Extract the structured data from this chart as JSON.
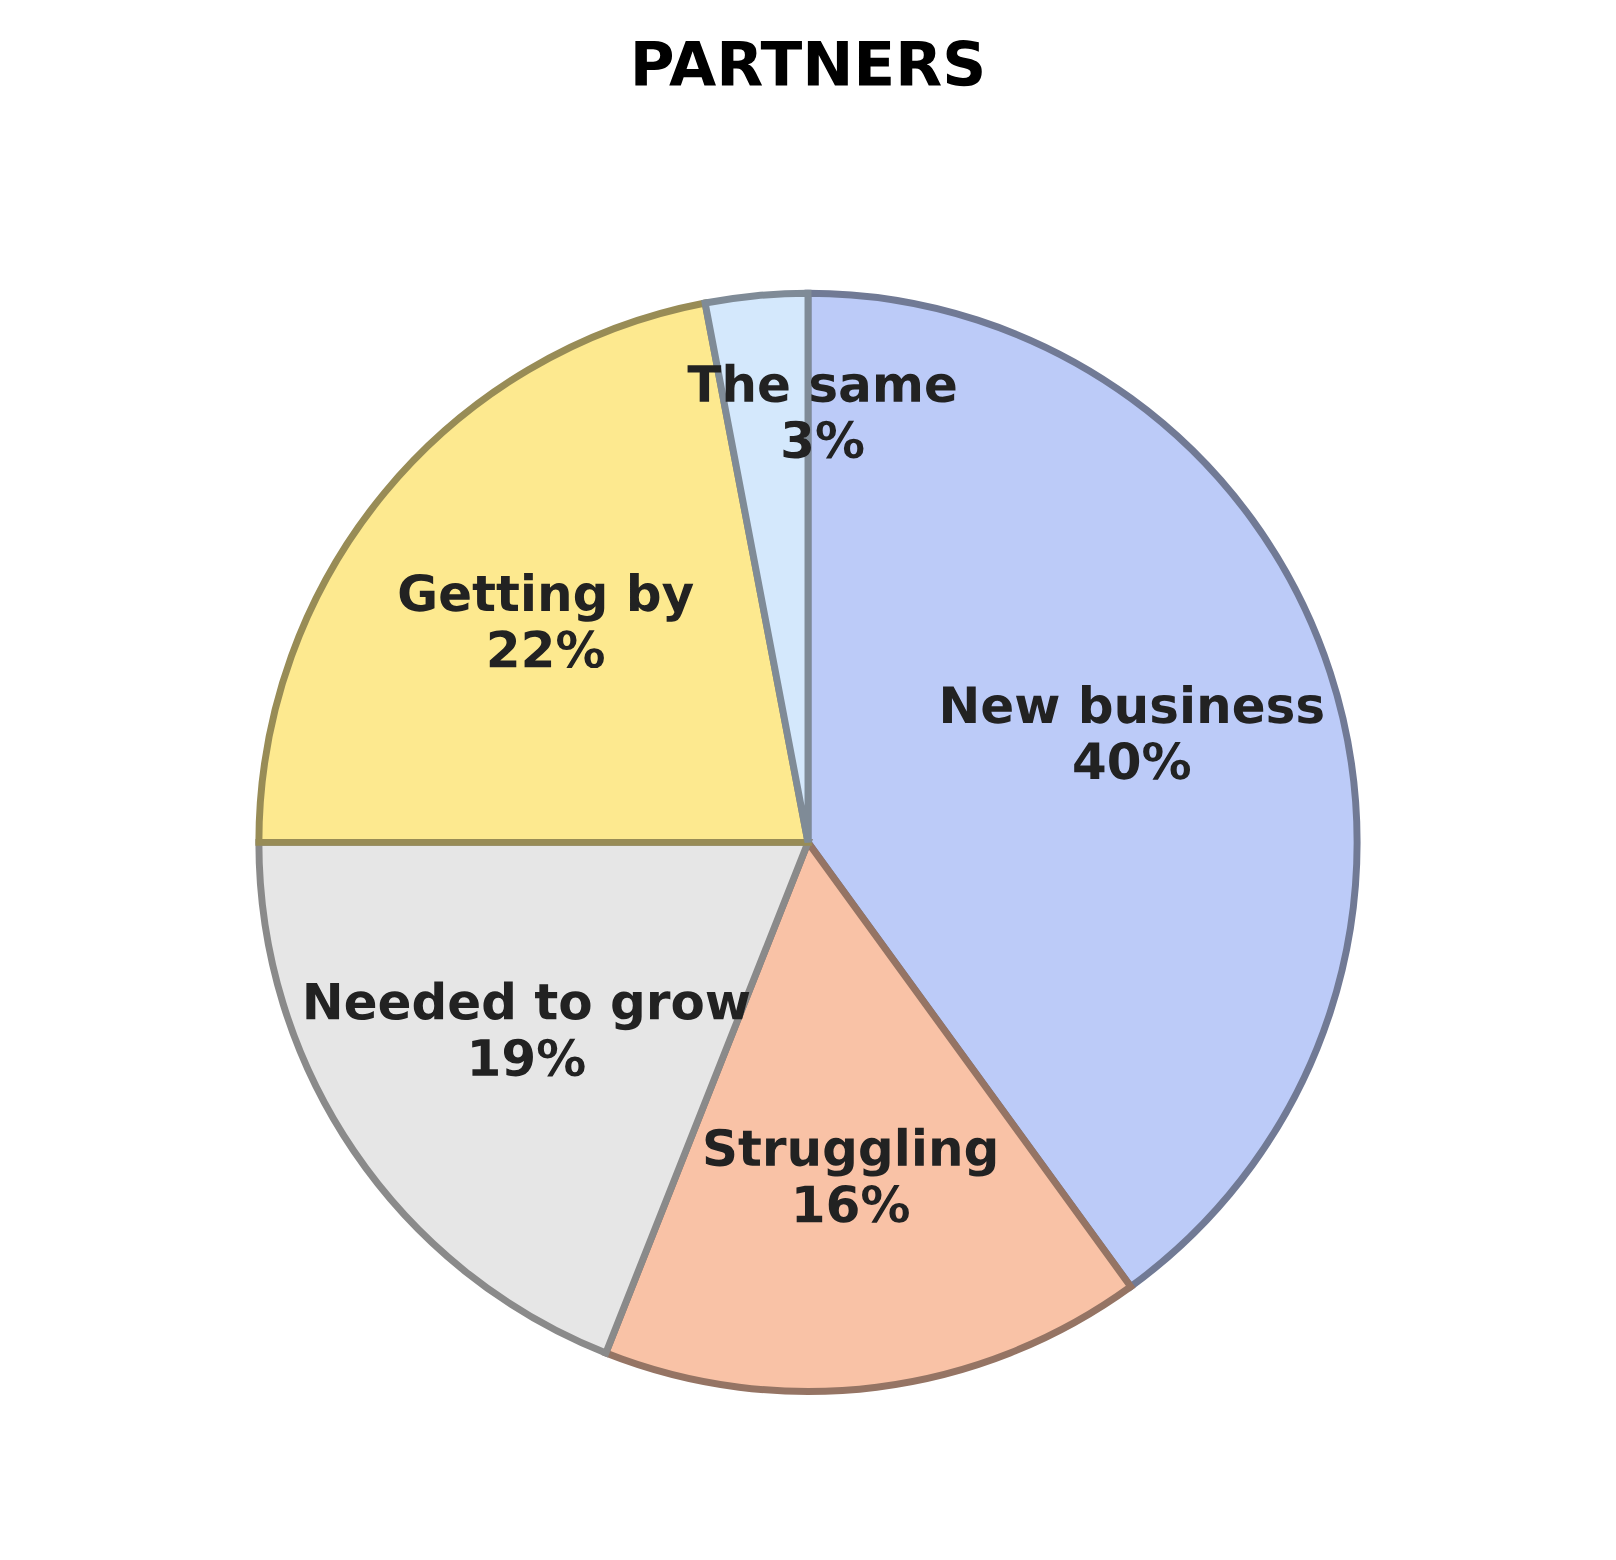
{
  "chart_data": {
    "type": "pie",
    "title": "PARTNERS",
    "categories": [
      "New business",
      "Struggling",
      "Needed to grow",
      "Getting by",
      "The same"
    ],
    "values": [
      40,
      16,
      19,
      22,
      3
    ],
    "value_labels": [
      "40%",
      "16%",
      "19%",
      "22%",
      "3%"
    ],
    "colors": [
      "#bccbf8",
      "#f9c2a6",
      "#e6e6e6",
      "#fde98f",
      "#d4e8fc"
    ],
    "legend": false
  }
}
